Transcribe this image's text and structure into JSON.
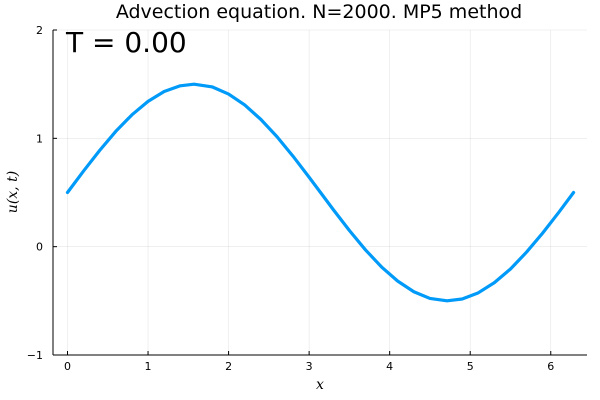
{
  "chart_data": {
    "type": "line",
    "title": "Advection equation. N=2000. MP5 method",
    "annotation": "T = 0.00",
    "xlabel": "x",
    "ylabel": "u(x, t)",
    "xlim": [
      -0.18,
      6.45
    ],
    "ylim": [
      -1,
      2
    ],
    "xticks": [
      0,
      1,
      2,
      3,
      4,
      5,
      6
    ],
    "yticks": [
      -1,
      0,
      1,
      2
    ],
    "grid": true,
    "legend": "none",
    "series": [
      {
        "color": "#009af9",
        "x": [
          0.0,
          0.2,
          0.4,
          0.6,
          0.8,
          1.0,
          1.2,
          1.4,
          1.5708,
          1.8,
          2.0,
          2.2,
          2.4,
          2.6,
          2.8,
          3.0,
          3.1416,
          3.3,
          3.5,
          3.7,
          3.9,
          4.1,
          4.3,
          4.5,
          4.7124,
          4.9,
          5.1,
          5.3,
          5.5,
          5.7,
          5.9,
          6.1,
          6.2832
        ],
        "y": [
          0.5,
          0.699,
          0.889,
          1.065,
          1.217,
          1.341,
          1.432,
          1.485,
          1.5,
          1.474,
          1.409,
          1.308,
          1.175,
          1.016,
          0.835,
          0.641,
          0.5,
          0.342,
          0.149,
          -0.03,
          -0.188,
          -0.318,
          -0.416,
          -0.478,
          -0.5,
          -0.483,
          -0.426,
          -0.332,
          -0.206,
          -0.05,
          0.126,
          0.317,
          0.5
        ]
      }
    ]
  }
}
